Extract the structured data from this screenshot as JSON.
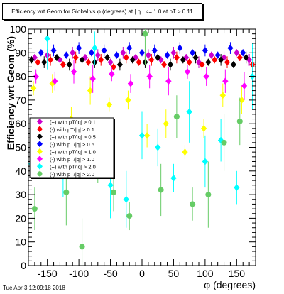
{
  "chart_data": {
    "type": "scatter",
    "title": "Efficiency wrt Geom for Global vs φ (degrees) at | η | <= 1.0 at pT > 0.11",
    "xlabel": "φ (degrees)",
    "ylabel": "Efficiency wrt Geom (%)",
    "xlim": [
      -180,
      180
    ],
    "ylim": [
      0,
      100
    ],
    "x_ticks": [
      "-150",
      "-100",
      "-50",
      "0",
      "50",
      "100",
      "150"
    ],
    "y_ticks": [
      "0",
      "10",
      "20",
      "30",
      "40",
      "50",
      "60",
      "70",
      "80",
      "90",
      "100"
    ],
    "grid": false,
    "legend_position": "left-middle",
    "series": [
      {
        "name": "(+) with pT/|q| > 0.1",
        "color": "#cc00cc",
        "marker": "diamond",
        "x": [
          -170,
          -150,
          -130,
          -110,
          -90,
          -70,
          -50,
          -30,
          -10,
          10,
          30,
          50,
          70,
          90,
          110,
          130,
          150,
          170
        ],
        "y": [
          88,
          89,
          87,
          90,
          88,
          89,
          86,
          90,
          88,
          89,
          87,
          90,
          88,
          86,
          89,
          88,
          90,
          87
        ]
      },
      {
        "name": "(-) with pT/|q| > 0.1",
        "color": "#ff0000",
        "marker": "diamond",
        "x": [
          -165,
          -145,
          -125,
          -105,
          -85,
          -65,
          -45,
          -25,
          -5,
          15,
          35,
          55,
          75,
          95,
          115,
          135,
          155,
          175
        ],
        "y": [
          86,
          87,
          85,
          88,
          86,
          87,
          84,
          88,
          86,
          87,
          85,
          88,
          86,
          85,
          87,
          86,
          88,
          85
        ]
      },
      {
        "name": "(+) with pT/|q| > 0.5",
        "color": "#000000",
        "marker": "diamond",
        "x": [
          -175,
          -155,
          -135,
          -115,
          -95,
          -75,
          -55,
          -35,
          -15,
          5,
          25,
          45,
          65,
          85,
          105,
          125,
          145,
          165
        ],
        "y": [
          87,
          86,
          88,
          85,
          87,
          86,
          88,
          85,
          87,
          86,
          88,
          85,
          87,
          88,
          86,
          87,
          85,
          88
        ]
      },
      {
        "name": "(-) with pT/|q| > 0.5",
        "color": "#0000ff",
        "marker": "diamond",
        "x": [
          -160,
          -140,
          -120,
          -100,
          -80,
          -60,
          -40,
          -20,
          0,
          20,
          40,
          60,
          80,
          100,
          120,
          140,
          160
        ],
        "y": [
          90,
          91,
          89,
          92,
          90,
          91,
          89,
          92,
          90,
          91,
          89,
          92,
          90,
          91,
          89,
          92,
          90
        ]
      },
      {
        "name": "(+) with pT/|q| > 1.0",
        "color": "#ffff00",
        "marker": "diamond",
        "x": [
          -172,
          -142,
          -112,
          -82,
          -52,
          -22,
          8,
          38,
          68,
          98,
          128,
          158
        ],
        "y": [
          75,
          77,
          62,
          74,
          68,
          70,
          55,
          60,
          48,
          58,
          72,
          70
        ]
      },
      {
        "name": "(-) with pT/|q| > 1.0",
        "color": "#ff00ff",
        "marker": "diamond",
        "x": [
          -168,
          -138,
          -108,
          -78,
          -48,
          -18,
          12,
          42,
          72,
          102,
          132,
          162
        ],
        "y": [
          80,
          78,
          82,
          79,
          81,
          77,
          80,
          78,
          82,
          80,
          78,
          76
        ]
      },
      {
        "name": "(+) with pT/|q| > 2.0",
        "color": "#00ffff",
        "marker": "diamond",
        "x": [
          -175,
          -150,
          -125,
          -100,
          -75,
          -50,
          -25,
          0,
          25,
          50,
          75,
          100,
          125,
          150,
          175
        ],
        "y": [
          43,
          96,
          40,
          51,
          92,
          34,
          28,
          55,
          50,
          37,
          65,
          44,
          53,
          33,
          80
        ]
      },
      {
        "name": "(-) with pT/|q| > 2.0",
        "color": "#66cc66",
        "marker": "circle",
        "x": [
          -170,
          -145,
          -120,
          -95,
          -70,
          -45,
          -20,
          5,
          30,
          55,
          80,
          105,
          130,
          155
        ],
        "y": [
          24,
          55,
          31,
          8,
          45,
          31,
          21,
          98,
          32,
          63,
          26,
          30,
          52,
          61
        ]
      }
    ]
  },
  "footer_text": "Tue Apr  3 12:09:18 2018"
}
